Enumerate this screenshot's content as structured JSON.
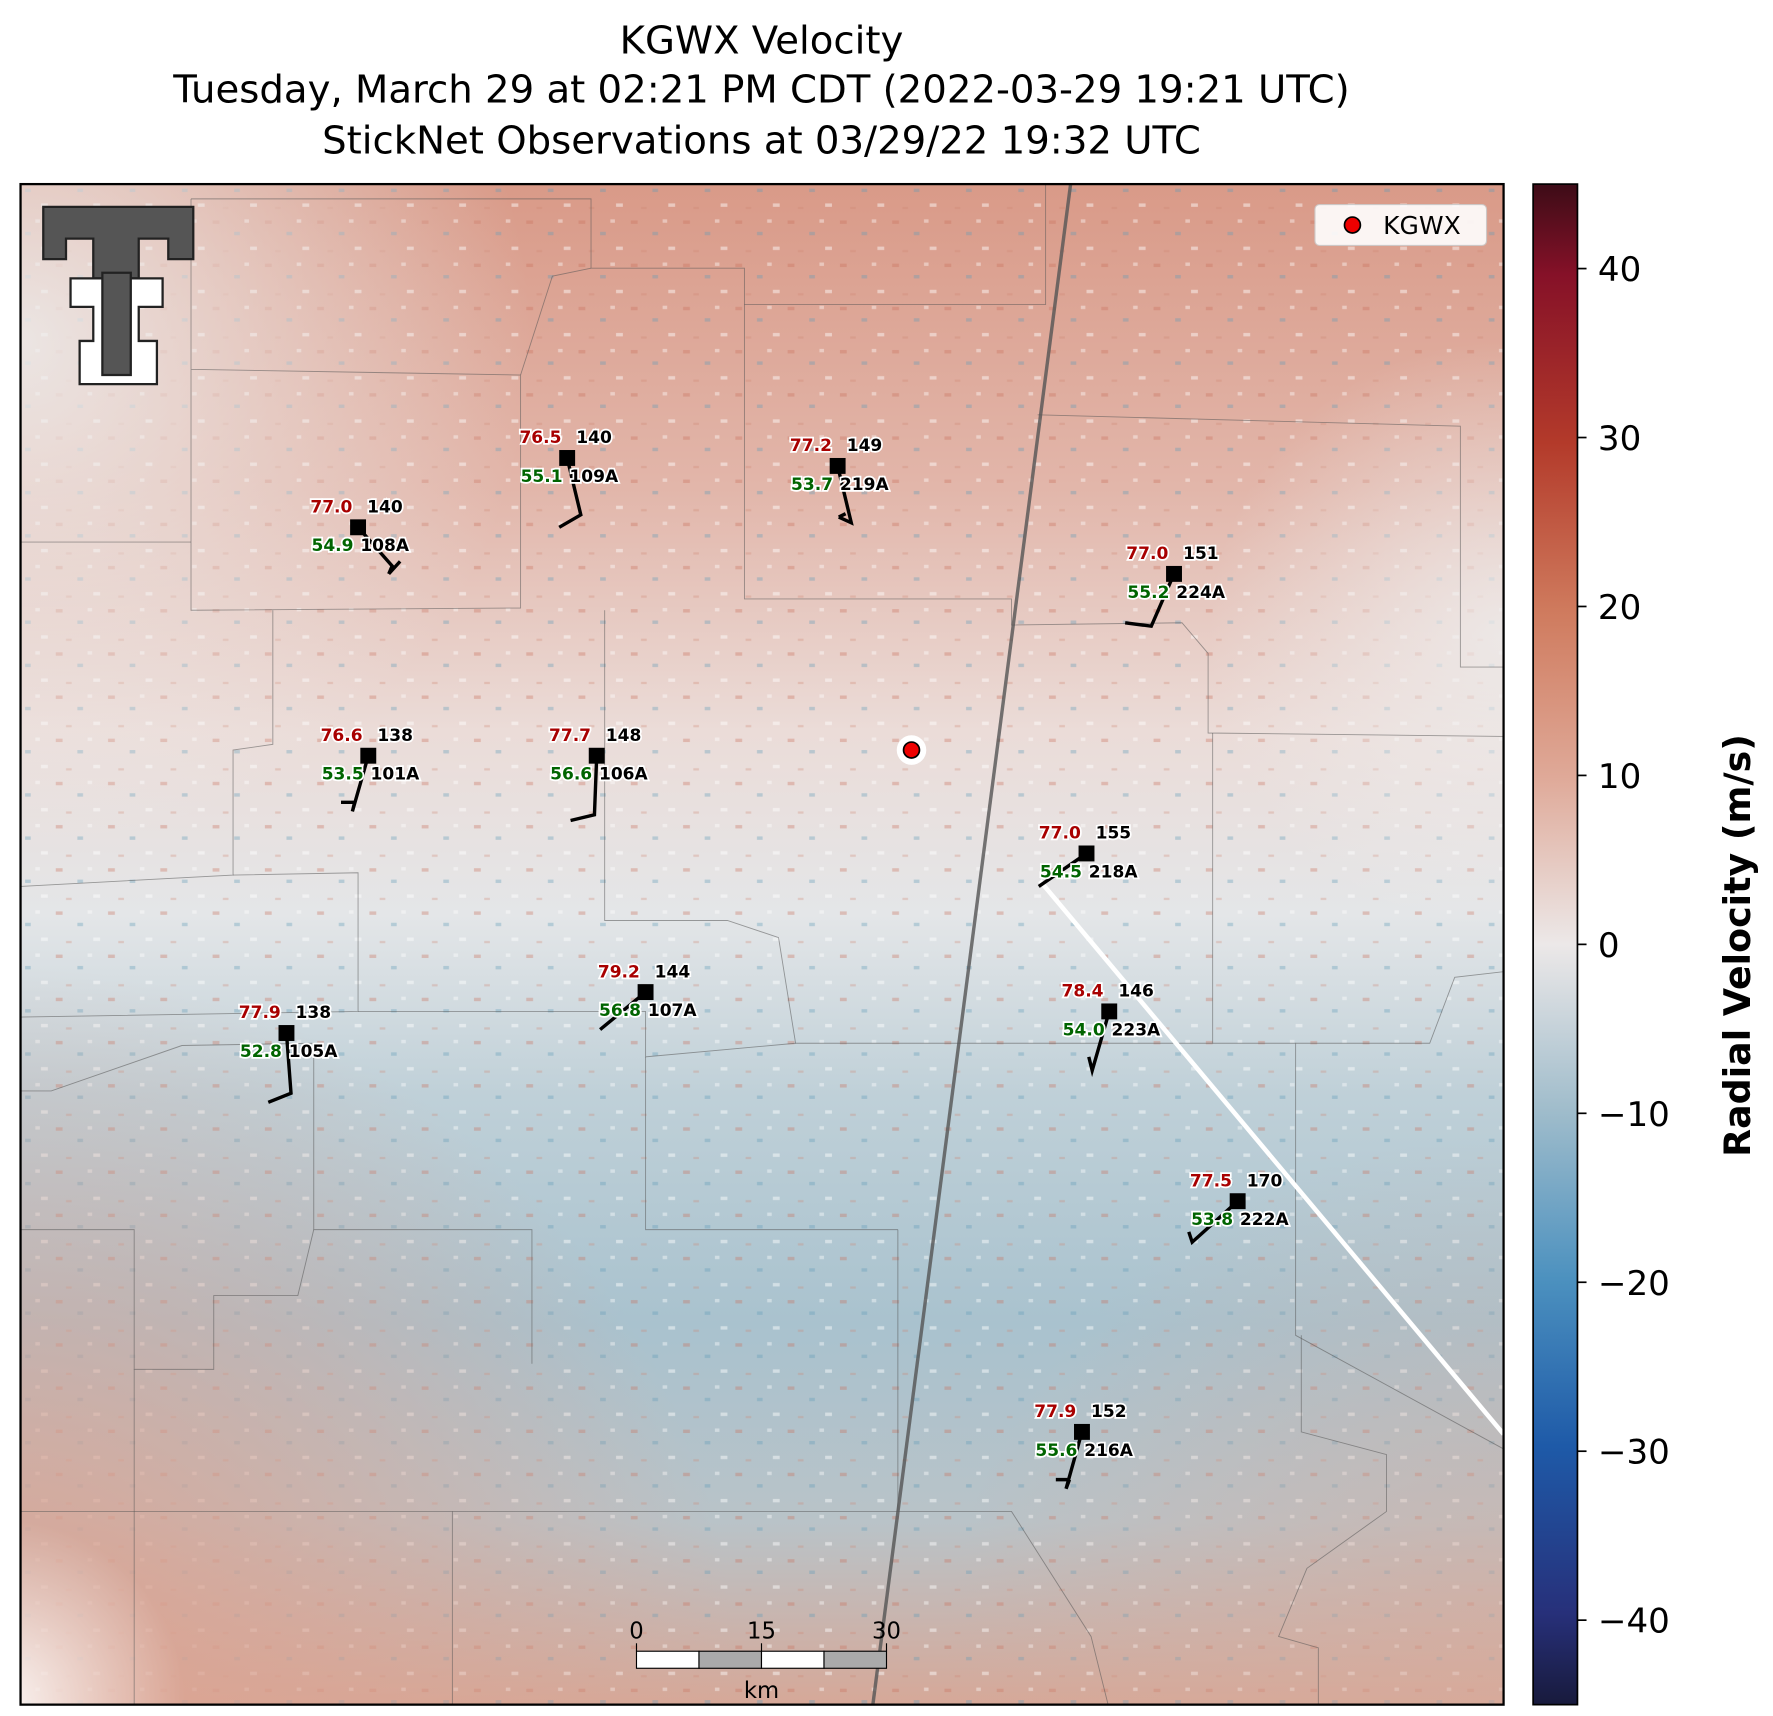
{
  "title": [
    "KGWX Velocity",
    "Tuesday, March 29 at 02:21 PM CDT (2022-03-29 19:21 UTC)",
    "StickNet Observations at 03/29/22 19:32 UTC"
  ],
  "legend": {
    "label": "KGWX"
  },
  "colorbar": {
    "label": "Radial Velocity (m/s)",
    "lim": [
      -45,
      45
    ],
    "ticks": [
      {
        "value": -40,
        "label": "−40"
      },
      {
        "value": -30,
        "label": "−30"
      },
      {
        "value": -20,
        "label": "−20"
      },
      {
        "value": -10,
        "label": "−10"
      },
      0,
      10,
      20,
      30,
      40
    ]
  },
  "scale_bar": {
    "ticks": [
      0,
      15,
      30
    ],
    "unit": "km"
  },
  "stations": [
    {
      "temperature": "77.0",
      "dewpoint": "54.9",
      "direction": 140,
      "id": "108A"
    },
    {
      "temperature": "76.5",
      "dewpoint": "55.1",
      "direction": 140,
      "id": "109A"
    },
    {
      "temperature": "77.2",
      "dewpoint": "53.7",
      "direction": 149,
      "id": "219A"
    },
    {
      "temperature": "77.0",
      "dewpoint": "55.2",
      "direction": 151,
      "id": "224A"
    },
    {
      "temperature": "76.6",
      "dewpoint": "53.5",
      "direction": 138,
      "id": "101A"
    },
    {
      "temperature": "77.7",
      "dewpoint": "56.6",
      "direction": 148,
      "id": "106A"
    },
    {
      "temperature": "77.0",
      "dewpoint": "54.5",
      "direction": 155,
      "id": "218A"
    },
    {
      "temperature": "79.2",
      "dewpoint": "56.8",
      "direction": 144,
      "id": "107A"
    },
    {
      "temperature": "77.9",
      "dewpoint": "52.8",
      "direction": 138,
      "id": "105A"
    },
    {
      "temperature": "78.4",
      "dewpoint": "54.0",
      "direction": 146,
      "id": "223A"
    },
    {
      "temperature": "77.5",
      "dewpoint": "53.8",
      "direction": 170,
      "id": "222A"
    },
    {
      "temperature": "77.9",
      "dewpoint": "55.6",
      "direction": 152,
      "id": "216A"
    }
  ]
}
